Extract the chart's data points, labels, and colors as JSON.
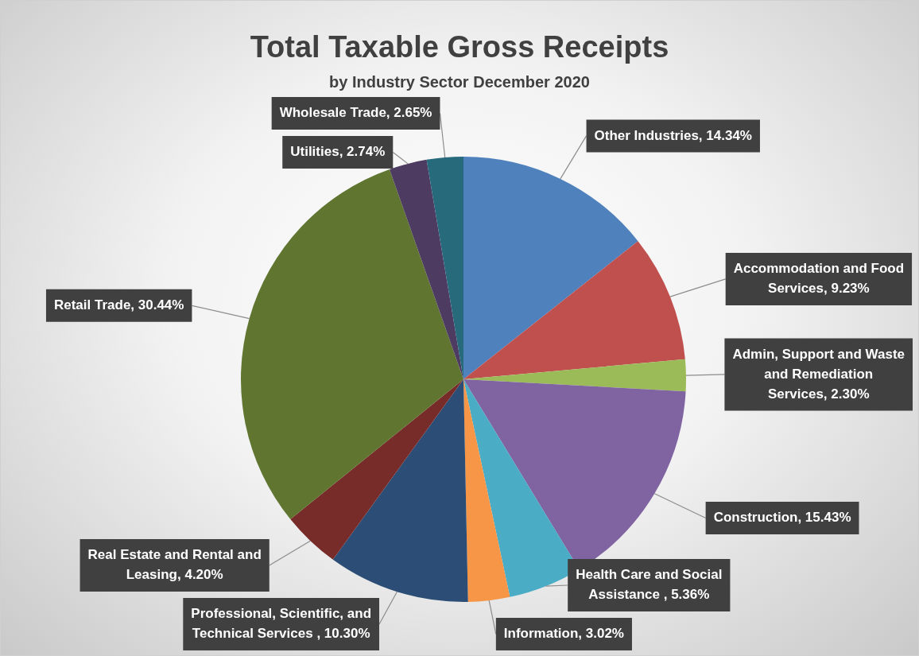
{
  "chart_data": {
    "type": "pie",
    "title": "Total Taxable Gross Receipts",
    "subtitle": "by Industry Sector December 2020",
    "categories": [
      "Other Industries",
      "Accommodation and Food Services",
      "Admin, Support and Waste and Remediation Services",
      "Construction",
      "Health Care and Social Assistance ",
      "Information",
      "Professional, Scientific, and Technical Services ",
      "Real Estate and Rental and Leasing",
      "Retail Trade",
      "Utilities",
      "Wholesale Trade"
    ],
    "values": [
      14.34,
      9.23,
      2.3,
      15.43,
      5.36,
      3.02,
      10.3,
      4.2,
      30.44,
      2.74,
      2.65
    ],
    "colors": [
      "#4f81bd",
      "#c0504d",
      "#9bbb59",
      "#8064a2",
      "#4bacc6",
      "#f79646",
      "#2c4d75",
      "#772c2a",
      "#5f7530",
      "#4d3b62",
      "#276a7c"
    ],
    "value_labels": [
      "14.34%",
      "9.23%",
      "2.30%",
      "15.43%",
      "5.36%",
      "3.02%",
      "10.30%",
      "4.20%",
      "30.44%",
      "2.74%",
      "2.65%"
    ],
    "legend": false
  }
}
